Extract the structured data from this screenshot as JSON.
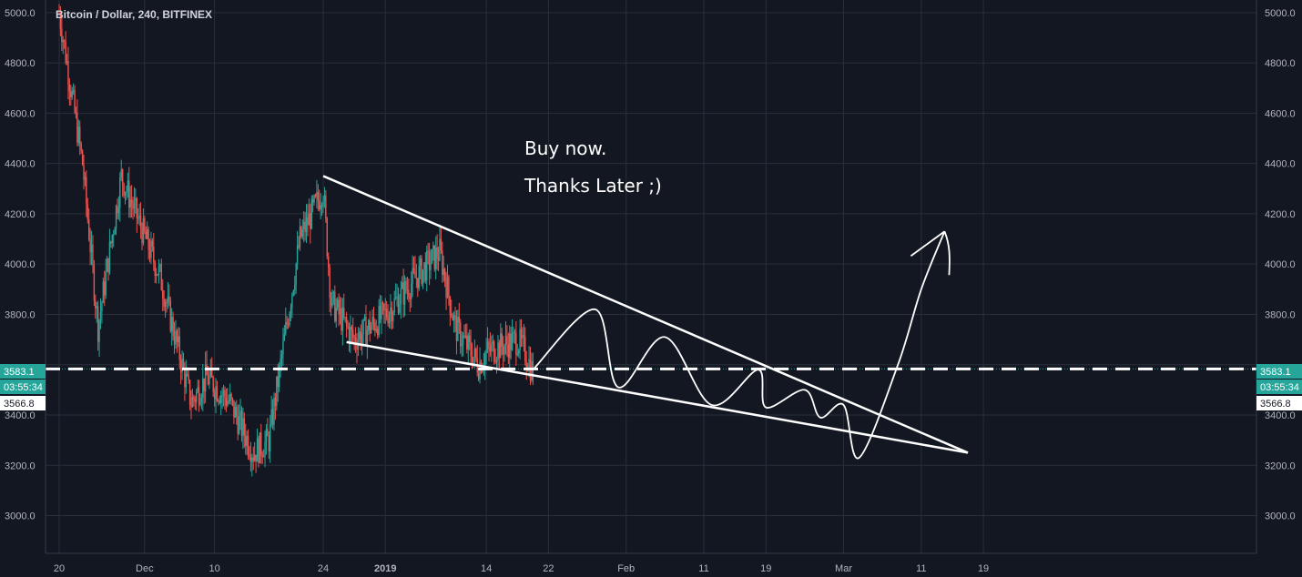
{
  "chart_data": {
    "type": "candlestick",
    "title": "Bitcoin / Dollar, 240, BITFINEX",
    "symbol": "Bitcoin / Dollar",
    "interval": "240",
    "exchange": "BITFINEX",
    "ylim": [
      2850,
      5050
    ],
    "y_ticks": [
      3000,
      3200,
      3400,
      3600,
      3800,
      4000,
      4200,
      4400,
      4600,
      4800,
      5000
    ],
    "y_ticks_hidden": [
      3600
    ],
    "x_ticks": [
      "20",
      "Dec",
      "10",
      "24",
      "2019",
      "14",
      "22",
      "Feb",
      "11",
      "19",
      "Mar",
      "11",
      "19"
    ],
    "x_ticks_bold": [
      "2019"
    ],
    "grid": true,
    "price_axis": "both",
    "current_price": {
      "value": "3583.1",
      "countdown": "03:55:34",
      "color": "#26a69a"
    },
    "secondary_price": {
      "value": "3566.8",
      "color": "#ffffff"
    },
    "colors": {
      "up": "#26a69a",
      "down": "#ef5350",
      "background": "#131722",
      "grid": "#2a2e39",
      "drawing": "#ffffff"
    },
    "ohlc_key_points": [
      {
        "date": "Nov 20",
        "price": 5000
      },
      {
        "date": "Nov 23",
        "price": 4400
      },
      {
        "date": "Nov 25",
        "price": 3750
      },
      {
        "date": "Nov 28",
        "price": 4350
      },
      {
        "date": "Dec 3",
        "price": 3950
      },
      {
        "date": "Dec 7",
        "price": 3450
      },
      {
        "date": "Dec 9",
        "price": 3550
      },
      {
        "date": "Dec 12",
        "price": 3450
      },
      {
        "date": "Dec 15",
        "price": 3250
      },
      {
        "date": "Dec 17",
        "price": 3300
      },
      {
        "date": "Dec 19",
        "price": 3700
      },
      {
        "date": "Dec 21",
        "price": 4100
      },
      {
        "date": "Dec 24",
        "price": 4300
      },
      {
        "date": "Dec 25",
        "price": 3850
      },
      {
        "date": "Dec 28",
        "price": 3700
      },
      {
        "date": "Jan 1",
        "price": 3800
      },
      {
        "date": "Jan 5",
        "price": 3950
      },
      {
        "date": "Jan 8",
        "price": 4050
      },
      {
        "date": "Jan 10",
        "price": 3750
      },
      {
        "date": "Jan 13",
        "price": 3600
      },
      {
        "date": "Jan 14",
        "price": 3650
      },
      {
        "date": "Jan 18",
        "price": 3700
      },
      {
        "date": "Jan 19",
        "price": 3650
      },
      {
        "date": "Jan 20",
        "price": 3567
      }
    ],
    "annotations": [
      "Buy now.",
      "Thanks Later ;)"
    ],
    "horizontal_line": {
      "price": 3583.1,
      "style": "dashed"
    },
    "trendlines": [
      {
        "from": {
          "date": "Dec 24",
          "price": 4350
        },
        "to": {
          "date": "Mar 17",
          "price": 3250
        }
      },
      {
        "from": {
          "date": "Dec 27",
          "price": 3690
        },
        "to": {
          "date": "Mar 17",
          "price": 3250
        }
      }
    ],
    "projection_path": [
      {
        "date": "Jan 20",
        "price": 3580
      },
      {
        "date": "Jan 28",
        "price": 3820
      },
      {
        "date": "Jan 31",
        "price": 3510
      },
      {
        "date": "Feb 6",
        "price": 3710
      },
      {
        "date": "Feb 12",
        "price": 3440
      },
      {
        "date": "Feb 18",
        "price": 3580
      },
      {
        "date": "Feb 19",
        "price": 3430
      },
      {
        "date": "Feb 24",
        "price": 3500
      },
      {
        "date": "Feb 26",
        "price": 3390
      },
      {
        "date": "Mar 1",
        "price": 3440
      },
      {
        "date": "Mar 3",
        "price": 3230
      },
      {
        "date": "Mar 8",
        "price": 3600
      },
      {
        "date": "Mar 11",
        "price": 3900
      },
      {
        "date": "Mar 14",
        "price": 4130
      }
    ]
  }
}
